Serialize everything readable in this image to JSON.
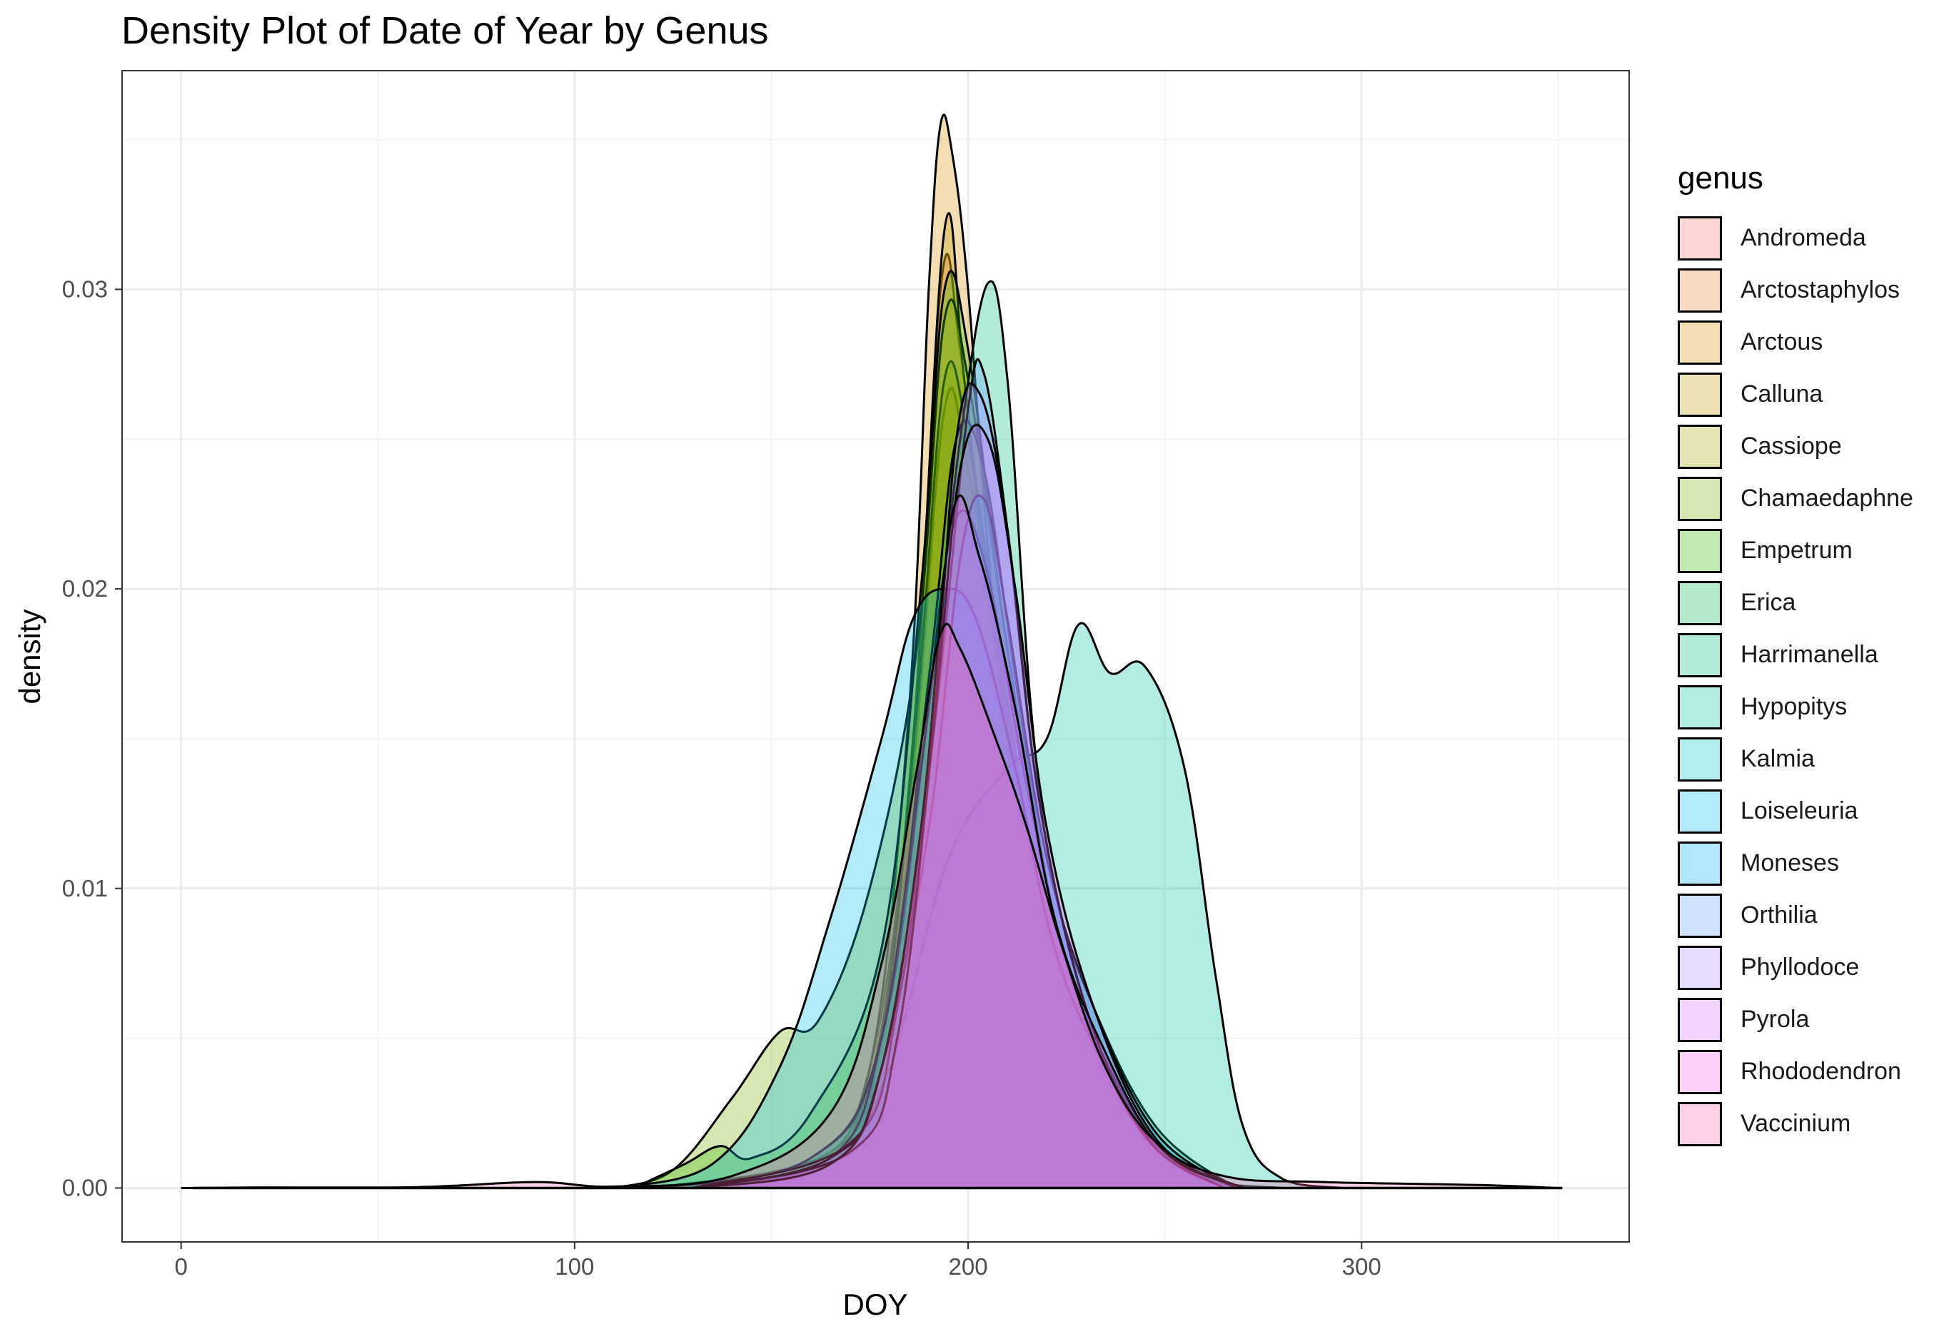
{
  "chart_data": {
    "type": "area",
    "title": "Density Plot of Date of Year by Genus",
    "xlabel": "DOY",
    "ylabel": "density",
    "xlim": [
      -15,
      368
    ],
    "ylim": [
      -0.0018,
      0.0373
    ],
    "x_ticks": [
      0,
      100,
      200,
      300
    ],
    "y_ticks": [
      0.0,
      0.01,
      0.02,
      0.03
    ],
    "y_tick_labels": [
      "0.00",
      "0.01",
      "0.02",
      "0.03"
    ],
    "grid": true,
    "legend": {
      "title": "genus",
      "position": "right"
    },
    "fill_opacity": 0.3,
    "series": [
      {
        "name": "Andromeda",
        "color": "#F8766D",
        "points": [
          [
            120,
            0
          ],
          [
            160,
            0.0004
          ],
          [
            175,
            0.003
          ],
          [
            185,
            0.012
          ],
          [
            193,
            0.03
          ],
          [
            198,
            0.028
          ],
          [
            205,
            0.02
          ],
          [
            215,
            0.012
          ],
          [
            225,
            0.006
          ],
          [
            240,
            0.002
          ],
          [
            260,
            0.0003
          ],
          [
            280,
            0
          ]
        ]
      },
      {
        "name": "Arctostaphylos",
        "color": "#EA8331",
        "points": [
          [
            120,
            0
          ],
          [
            160,
            0.0008
          ],
          [
            175,
            0.004
          ],
          [
            186,
            0.014
          ],
          [
            194,
            0.026
          ],
          [
            200,
            0.024
          ],
          [
            210,
            0.016
          ],
          [
            220,
            0.009
          ],
          [
            232,
            0.004
          ],
          [
            250,
            0.001
          ],
          [
            270,
            0
          ]
        ]
      },
      {
        "name": "Arctous",
        "color": "#D89000",
        "points": [
          [
            120,
            0
          ],
          [
            160,
            0.0006
          ],
          [
            175,
            0.004
          ],
          [
            185,
            0.016
          ],
          [
            190,
            0.03
          ],
          [
            193,
            0.0355
          ],
          [
            196,
            0.0345
          ],
          [
            200,
            0.03
          ],
          [
            206,
            0.02
          ],
          [
            214,
            0.012
          ],
          [
            225,
            0.006
          ],
          [
            240,
            0.002
          ],
          [
            260,
            0
          ]
        ]
      },
      {
        "name": "Calluna",
        "color": "#C09B00",
        "points": [
          [
            120,
            0
          ],
          [
            160,
            0.0005
          ],
          [
            176,
            0.004
          ],
          [
            186,
            0.015
          ],
          [
            194,
            0.032
          ],
          [
            199,
            0.027
          ],
          [
            206,
            0.019
          ],
          [
            215,
            0.011
          ],
          [
            228,
            0.005
          ],
          [
            245,
            0.0015
          ],
          [
            265,
            0
          ]
        ]
      },
      {
        "name": "Cassiope",
        "color": "#A3A500",
        "points": [
          [
            120,
            0
          ],
          [
            165,
            0.0012
          ],
          [
            178,
            0.005
          ],
          [
            187,
            0.016
          ],
          [
            194,
            0.027
          ],
          [
            200,
            0.025
          ],
          [
            208,
            0.018
          ],
          [
            218,
            0.01
          ],
          [
            230,
            0.005
          ],
          [
            248,
            0.0013
          ],
          [
            270,
            0
          ]
        ]
      },
      {
        "name": "Chamaedaphne",
        "color": "#7CAE00",
        "points": [
          [
            110,
            0
          ],
          [
            125,
            0.0006
          ],
          [
            140,
            0.003
          ],
          [
            152,
            0.0052
          ],
          [
            162,
            0.0056
          ],
          [
            175,
            0.01
          ],
          [
            187,
            0.018
          ],
          [
            194,
            0.029
          ],
          [
            200,
            0.027
          ],
          [
            210,
            0.018
          ],
          [
            222,
            0.009
          ],
          [
            235,
            0.004
          ],
          [
            250,
            0.001
          ],
          [
            270,
            0
          ]
        ]
      },
      {
        "name": "Empetrum",
        "color": "#39B600",
        "points": [
          [
            115,
            0
          ],
          [
            128,
            0.0008
          ],
          [
            137,
            0.0014
          ],
          [
            145,
            0.001
          ],
          [
            160,
            0.0025
          ],
          [
            178,
            0.008
          ],
          [
            188,
            0.02
          ],
          [
            194,
            0.03
          ],
          [
            200,
            0.028
          ],
          [
            210,
            0.018
          ],
          [
            222,
            0.009
          ],
          [
            238,
            0.003
          ],
          [
            258,
            0.0005
          ],
          [
            275,
            0
          ]
        ]
      },
      {
        "name": "Erica",
        "color": "#00BB4E",
        "points": [
          [
            120,
            0
          ],
          [
            160,
            0.001
          ],
          [
            178,
            0.005
          ],
          [
            190,
            0.017
          ],
          [
            197,
            0.025
          ],
          [
            204,
            0.024
          ],
          [
            212,
            0.017
          ],
          [
            222,
            0.009
          ],
          [
            235,
            0.004
          ],
          [
            250,
            0.001
          ],
          [
            268,
            0
          ]
        ]
      },
      {
        "name": "Harrimanella",
        "color": "#00BF7D",
        "points": [
          [
            120,
            0
          ],
          [
            160,
            0.001
          ],
          [
            178,
            0.005
          ],
          [
            190,
            0.016
          ],
          [
            198,
            0.025
          ],
          [
            205,
            0.0302
          ],
          [
            210,
            0.027
          ],
          [
            216,
            0.016
          ],
          [
            222,
            0.01
          ],
          [
            232,
            0.006
          ],
          [
            248,
            0.002
          ],
          [
            268,
            0
          ]
        ]
      },
      {
        "name": "Hypopitys",
        "color": "#00C1A3",
        "points": [
          [
            130,
            0
          ],
          [
            165,
            0.0008
          ],
          [
            180,
            0.004
          ],
          [
            195,
            0.011
          ],
          [
            210,
            0.014
          ],
          [
            220,
            0.015
          ],
          [
            228,
            0.0188
          ],
          [
            236,
            0.0172
          ],
          [
            245,
            0.0174
          ],
          [
            255,
            0.014
          ],
          [
            263,
            0.007
          ],
          [
            270,
            0.002
          ],
          [
            280,
            0.0003
          ],
          [
            295,
            0
          ]
        ]
      },
      {
        "name": "Kalmia",
        "color": "#00BFC4",
        "points": [
          [
            130,
            0
          ],
          [
            165,
            0.001
          ],
          [
            178,
            0.005
          ],
          [
            188,
            0.014
          ],
          [
            196,
            0.022
          ],
          [
            204,
            0.021
          ],
          [
            214,
            0.014
          ],
          [
            224,
            0.008
          ],
          [
            236,
            0.004
          ],
          [
            250,
            0.0012
          ],
          [
            270,
            0
          ]
        ]
      },
      {
        "name": "Loiseleuria",
        "color": "#00B9E3",
        "points": [
          [
            110,
            0
          ],
          [
            135,
            0.0008
          ],
          [
            152,
            0.004
          ],
          [
            165,
            0.009
          ],
          [
            178,
            0.015
          ],
          [
            186,
            0.019
          ],
          [
            194,
            0.02
          ],
          [
            202,
            0.019
          ],
          [
            212,
            0.014
          ],
          [
            222,
            0.008
          ],
          [
            235,
            0.004
          ],
          [
            250,
            0.0012
          ],
          [
            270,
            0
          ]
        ]
      },
      {
        "name": "Moneses",
        "color": "#00ADFA",
        "points": [
          [
            130,
            0
          ],
          [
            165,
            0.0008
          ],
          [
            178,
            0.004
          ],
          [
            190,
            0.012
          ],
          [
            198,
            0.021
          ],
          [
            204,
            0.023
          ],
          [
            210,
            0.019
          ],
          [
            220,
            0.011
          ],
          [
            232,
            0.006
          ],
          [
            248,
            0.0018
          ],
          [
            268,
            0
          ]
        ]
      },
      {
        "name": "Orthilia",
        "color": "#619CFF",
        "points": [
          [
            130,
            0
          ],
          [
            170,
            0.0015
          ],
          [
            182,
            0.006
          ],
          [
            192,
            0.016
          ],
          [
            200,
            0.026
          ],
          [
            204,
            0.0272
          ],
          [
            210,
            0.022
          ],
          [
            218,
            0.013
          ],
          [
            230,
            0.006
          ],
          [
            245,
            0.0017
          ],
          [
            265,
            0
          ]
        ]
      },
      {
        "name": "Phyllodoce",
        "color": "#AE87FF",
        "points": [
          [
            130,
            0
          ],
          [
            165,
            0.001
          ],
          [
            178,
            0.004
          ],
          [
            190,
            0.014
          ],
          [
            197,
            0.025
          ],
          [
            203,
            0.0265
          ],
          [
            210,
            0.022
          ],
          [
            218,
            0.013
          ],
          [
            230,
            0.006
          ],
          [
            246,
            0.0016
          ],
          [
            265,
            0
          ]
        ]
      },
      {
        "name": "Pyrola",
        "color": "#DB72FB",
        "points": [
          [
            130,
            0
          ],
          [
            170,
            0.0012
          ],
          [
            182,
            0.005
          ],
          [
            191,
            0.015
          ],
          [
            198,
            0.024
          ],
          [
            205,
            0.025
          ],
          [
            212,
            0.02
          ],
          [
            220,
            0.012
          ],
          [
            232,
            0.006
          ],
          [
            248,
            0.0016
          ],
          [
            268,
            0
          ]
        ]
      },
      {
        "name": "Rhododendron",
        "color": "#F564E3",
        "points": [
          [
            130,
            0
          ],
          [
            165,
            0.0008
          ],
          [
            178,
            0.004
          ],
          [
            188,
            0.012
          ],
          [
            196,
            0.0225
          ],
          [
            203,
            0.021
          ],
          [
            212,
            0.016
          ],
          [
            222,
            0.009
          ],
          [
            235,
            0.0045
          ],
          [
            250,
            0.0012
          ],
          [
            270,
            0
          ]
        ]
      },
      {
        "name": "Vaccinium",
        "color": "#FF64B0",
        "points": [
          [
            0,
            0
          ],
          [
            20,
            2e-05
          ],
          [
            60,
            3e-05
          ],
          [
            90,
            0.0002
          ],
          [
            110,
            5e-05
          ],
          [
            140,
            0.0004
          ],
          [
            165,
            0.0025
          ],
          [
            178,
            0.0075
          ],
          [
            187,
            0.014
          ],
          [
            193,
            0.0185
          ],
          [
            198,
            0.018
          ],
          [
            207,
            0.015
          ],
          [
            215,
            0.012
          ],
          [
            224,
            0.008
          ],
          [
            235,
            0.004
          ],
          [
            248,
            0.0015
          ],
          [
            265,
            0.0004
          ],
          [
            290,
            0.0002
          ],
          [
            330,
            0.0001
          ],
          [
            350,
            0
          ]
        ]
      }
    ]
  }
}
